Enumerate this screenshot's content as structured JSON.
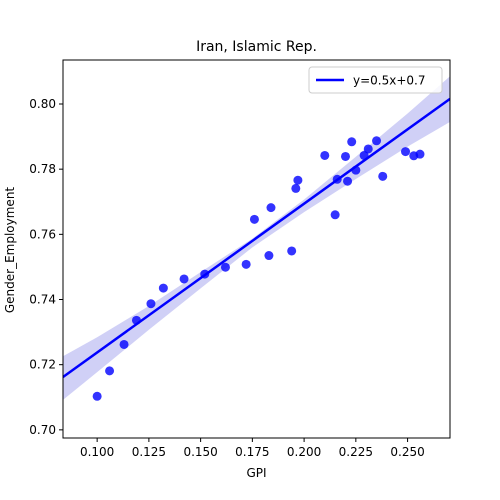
{
  "chart_data": {
    "type": "scatter",
    "title": "Iran, Islamic Rep.",
    "xlabel": "GPI",
    "ylabel": "Gender_Employment",
    "xlim": [
      0.0835,
      0.2705
    ],
    "ylim": [
      0.6975,
      0.8135
    ],
    "x_ticks": [
      0.1,
      0.125,
      0.15,
      0.175,
      0.2,
      0.225,
      0.25
    ],
    "x_tick_labels": [
      "0.100",
      "0.125",
      "0.150",
      "0.175",
      "0.200",
      "0.225",
      "0.250"
    ],
    "y_ticks": [
      0.7,
      0.72,
      0.74,
      0.76,
      0.78,
      0.8
    ],
    "y_tick_labels": [
      "0.70",
      "0.72",
      "0.74",
      "0.76",
      "0.78",
      "0.80"
    ],
    "grid": false,
    "legend_position": "top-right",
    "legend_label": "y=0.5x+0.7",
    "colors": {
      "points": "#0000ff",
      "line": "#0000ff",
      "band": "#c8c8f4"
    },
    "series": [
      {
        "points": [
          {
            "x": 0.1,
            "y": 0.7103
          },
          {
            "x": 0.106,
            "y": 0.7181
          },
          {
            "x": 0.113,
            "y": 0.7262
          },
          {
            "x": 0.119,
            "y": 0.7336
          },
          {
            "x": 0.126,
            "y": 0.7387
          },
          {
            "x": 0.132,
            "y": 0.7435
          },
          {
            "x": 0.142,
            "y": 0.7463
          },
          {
            "x": 0.152,
            "y": 0.7478
          },
          {
            "x": 0.162,
            "y": 0.7499
          },
          {
            "x": 0.172,
            "y": 0.7508
          },
          {
            "x": 0.176,
            "y": 0.7646
          },
          {
            "x": 0.183,
            "y": 0.7535
          },
          {
            "x": 0.184,
            "y": 0.7682
          },
          {
            "x": 0.194,
            "y": 0.7549
          },
          {
            "x": 0.196,
            "y": 0.7741
          },
          {
            "x": 0.197,
            "y": 0.7766
          },
          {
            "x": 0.21,
            "y": 0.7842
          },
          {
            "x": 0.215,
            "y": 0.766
          },
          {
            "x": 0.216,
            "y": 0.7769
          },
          {
            "x": 0.22,
            "y": 0.7839
          },
          {
            "x": 0.221,
            "y": 0.7763
          },
          {
            "x": 0.223,
            "y": 0.7884
          },
          {
            "x": 0.225,
            "y": 0.7797
          },
          {
            "x": 0.229,
            "y": 0.7842
          },
          {
            "x": 0.231,
            "y": 0.7862
          },
          {
            "x": 0.235,
            "y": 0.7887
          },
          {
            "x": 0.238,
            "y": 0.7778
          },
          {
            "x": 0.249,
            "y": 0.7854
          },
          {
            "x": 0.253,
            "y": 0.7841
          },
          {
            "x": 0.256,
            "y": 0.7846
          }
        ]
      }
    ],
    "regression": {
      "slope": 0.4565,
      "intercept": 0.6781,
      "band": [
        {
          "x": 0.0835,
          "lo": 0.7092,
          "hi": 0.7226
        },
        {
          "x": 0.1,
          "lo": 0.7177,
          "hi": 0.7284
        },
        {
          "x": 0.125,
          "lo": 0.7307,
          "hi": 0.738
        },
        {
          "x": 0.15,
          "lo": 0.7434,
          "hi": 0.7484
        },
        {
          "x": 0.175,
          "lo": 0.756,
          "hi": 0.7587
        },
        {
          "x": 0.2,
          "lo": 0.7668,
          "hi": 0.7707
        },
        {
          "x": 0.225,
          "lo": 0.777,
          "hi": 0.7838
        },
        {
          "x": 0.25,
          "lo": 0.7869,
          "hi": 0.7971
        },
        {
          "x": 0.2705,
          "lo": 0.7945,
          "hi": 0.8085
        }
      ]
    }
  }
}
